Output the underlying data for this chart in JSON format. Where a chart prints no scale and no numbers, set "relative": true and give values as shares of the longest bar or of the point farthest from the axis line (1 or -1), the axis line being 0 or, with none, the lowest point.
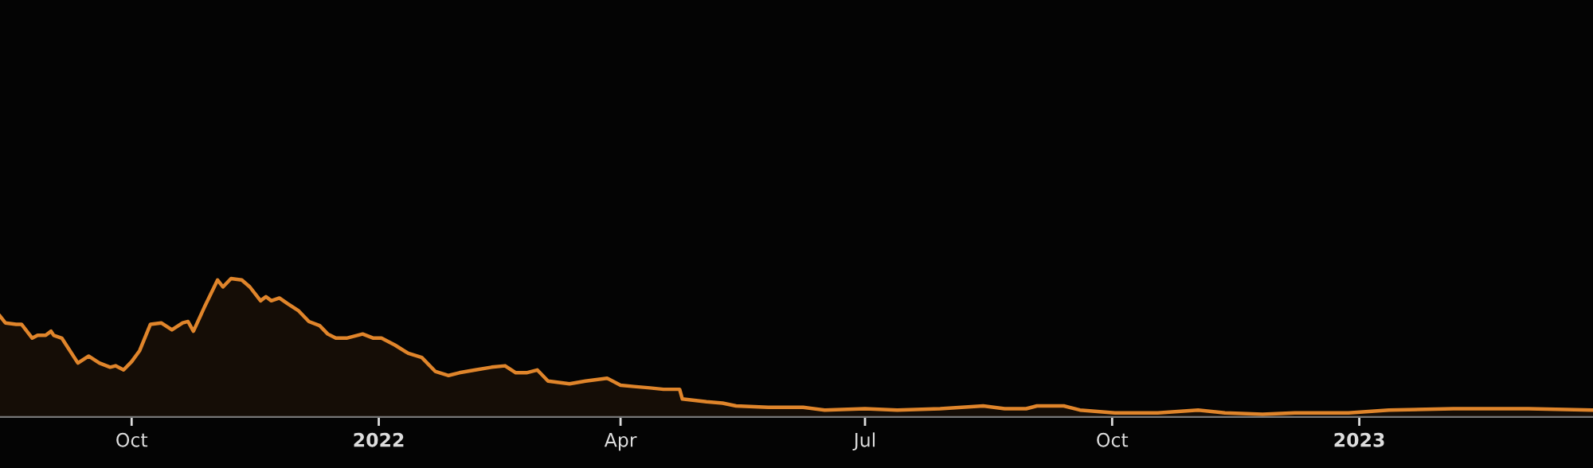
{
  "chart_data": {
    "type": "area",
    "relative": true,
    "tick_labels": "x",
    "legend": false,
    "xlim": [
      "2021-08-13",
      "2023-03-29"
    ],
    "xticks": [
      {
        "value": "2021-10-01",
        "label": "Oct"
      },
      {
        "value": "2022-01-01",
        "label": "2022"
      },
      {
        "value": "2022-04-01",
        "label": "Apr"
      },
      {
        "value": "2022-07-01",
        "label": "Jul"
      },
      {
        "value": "2022-10-01",
        "label": "Oct"
      },
      {
        "value": "2023-01-01",
        "label": "2023"
      }
    ],
    "series": [
      {
        "color": "#e0852b",
        "x": [
          "2021-08-13",
          "2021-08-15",
          "2021-08-19",
          "2021-08-21",
          "2021-08-25",
          "2021-08-27",
          "2021-08-30",
          "2021-09-01",
          "2021-09-02",
          "2021-09-05",
          "2021-09-07",
          "2021-09-11",
          "2021-09-15",
          "2021-09-19",
          "2021-09-23",
          "2021-09-25",
          "2021-09-28",
          "2021-10-01",
          "2021-10-04",
          "2021-10-08",
          "2021-10-12",
          "2021-10-16",
          "2021-10-20",
          "2021-10-22",
          "2021-10-24",
          "2021-10-28",
          "2021-11-02",
          "2021-11-04",
          "2021-11-07",
          "2021-11-11",
          "2021-11-14",
          "2021-11-18",
          "2021-11-20",
          "2021-11-22",
          "2021-11-25",
          "2021-11-28",
          "2021-12-02",
          "2021-12-06",
          "2021-12-10",
          "2021-12-13",
          "2021-12-16",
          "2021-12-20",
          "2021-12-26",
          "2021-12-30",
          "2022-01-02",
          "2022-01-07",
          "2022-01-12",
          "2022-01-17",
          "2022-01-22",
          "2022-01-27",
          "2022-01-31",
          "2022-02-06",
          "2022-02-12",
          "2022-02-17",
          "2022-02-21",
          "2022-02-25",
          "2022-03-01",
          "2022-03-05",
          "2022-03-13",
          "2022-03-19",
          "2022-03-27",
          "2022-04-01",
          "2022-04-06",
          "2022-04-12",
          "2022-04-17",
          "2022-04-23",
          "2022-04-24",
          "2022-05-03",
          "2022-05-09",
          "2022-05-14",
          "2022-05-26",
          "2022-06-08",
          "2022-06-16",
          "2022-07-01",
          "2022-07-13",
          "2022-07-29",
          "2022-08-14",
          "2022-08-22",
          "2022-08-30",
          "2022-09-03",
          "2022-09-13",
          "2022-09-19",
          "2022-10-02",
          "2022-10-18",
          "2022-11-02",
          "2022-11-12",
          "2022-11-26",
          "2022-12-08",
          "2022-12-28",
          "2023-01-12",
          "2023-02-05",
          "2023-02-19",
          "2023-03-05",
          "2023-03-29"
        ],
        "values": [
          0.73,
          0.68,
          0.67,
          0.67,
          0.57,
          0.59,
          0.59,
          0.62,
          0.59,
          0.57,
          0.51,
          0.39,
          0.44,
          0.39,
          0.36,
          0.37,
          0.34,
          0.4,
          0.48,
          0.67,
          0.68,
          0.63,
          0.68,
          0.69,
          0.62,
          0.79,
          0.99,
          0.94,
          1.0,
          0.99,
          0.94,
          0.84,
          0.87,
          0.84,
          0.86,
          0.82,
          0.77,
          0.69,
          0.66,
          0.6,
          0.57,
          0.57,
          0.6,
          0.57,
          0.57,
          0.52,
          0.46,
          0.43,
          0.33,
          0.3,
          0.32,
          0.34,
          0.36,
          0.37,
          0.32,
          0.32,
          0.34,
          0.26,
          0.24,
          0.26,
          0.28,
          0.23,
          0.22,
          0.21,
          0.2,
          0.2,
          0.13,
          0.11,
          0.1,
          0.08,
          0.07,
          0.07,
          0.05,
          0.06,
          0.05,
          0.06,
          0.08,
          0.06,
          0.06,
          0.08,
          0.08,
          0.05,
          0.03,
          0.03,
          0.05,
          0.03,
          0.02,
          0.03,
          0.03,
          0.05,
          0.06,
          0.06,
          0.06,
          0.05
        ]
      }
    ]
  }
}
